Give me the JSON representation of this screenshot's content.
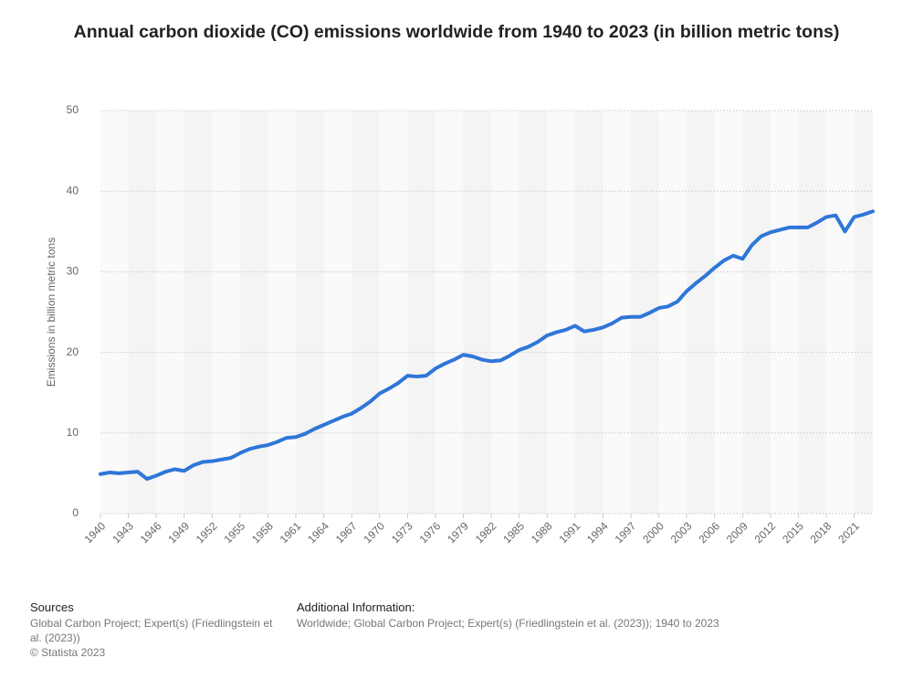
{
  "chart_data": {
    "type": "line",
    "title": "Annual carbon dioxide (CO) emissions worldwide from 1940 to 2023 (in billion metric tons)",
    "y_label": "Emissions in billion metric tons",
    "x": [
      1940,
      1941,
      1942,
      1943,
      1944,
      1945,
      1946,
      1947,
      1948,
      1949,
      1950,
      1951,
      1952,
      1953,
      1954,
      1955,
      1956,
      1957,
      1958,
      1959,
      1960,
      1961,
      1962,
      1963,
      1964,
      1965,
      1966,
      1967,
      1968,
      1969,
      1970,
      1971,
      1972,
      1973,
      1974,
      1975,
      1976,
      1977,
      1978,
      1979,
      1980,
      1981,
      1982,
      1983,
      1984,
      1985,
      1986,
      1987,
      1988,
      1989,
      1990,
      1991,
      1992,
      1993,
      1994,
      1995,
      1996,
      1997,
      1998,
      1999,
      2000,
      2001,
      2002,
      2003,
      2004,
      2005,
      2006,
      2007,
      2008,
      2009,
      2010,
      2011,
      2012,
      2013,
      2014,
      2015,
      2016,
      2017,
      2018,
      2019,
      2020,
      2021,
      2022,
      2023
    ],
    "series": [
      {
        "name": "Emissions",
        "color": "#2f76d8",
        "values": [
          4.9,
          5.1,
          5.0,
          5.1,
          5.2,
          4.3,
          4.7,
          5.2,
          5.5,
          5.3,
          6.0,
          6.4,
          6.5,
          6.7,
          6.9,
          7.5,
          8.0,
          8.3,
          8.5,
          8.9,
          9.4,
          9.5,
          9.9,
          10.5,
          11.0,
          11.5,
          12.0,
          12.4,
          13.1,
          13.9,
          14.9,
          15.5,
          16.2,
          17.1,
          17.0,
          17.1,
          18.0,
          18.6,
          19.1,
          19.7,
          19.5,
          19.1,
          18.9,
          19.0,
          19.6,
          20.3,
          20.7,
          21.3,
          22.1,
          22.5,
          22.8,
          23.3,
          22.6,
          22.8,
          23.1,
          23.6,
          24.3,
          24.4,
          24.4,
          24.9,
          25.5,
          25.7,
          26.3,
          27.6,
          28.6,
          29.5,
          30.5,
          31.4,
          32.0,
          31.6,
          33.3,
          34.4,
          34.9,
          35.2,
          35.5,
          35.5,
          35.5,
          36.1,
          36.8,
          37.0,
          35.0,
          36.8,
          37.1,
          37.5
        ]
      }
    ],
    "xlim": [
      1940,
      2023
    ],
    "xticks": [
      1940,
      1943,
      1946,
      1949,
      1952,
      1955,
      1958,
      1961,
      1964,
      1967,
      1970,
      1973,
      1976,
      1979,
      1982,
      1985,
      1988,
      1991,
      1994,
      1997,
      2000,
      2003,
      2006,
      2009,
      2012,
      2015,
      2018,
      2021
    ],
    "ylim": [
      0,
      50
    ],
    "yticks": [
      0,
      10,
      20,
      30,
      40,
      50
    ],
    "grid": true
  },
  "footer": {
    "sources_heading": "Sources",
    "sources": [
      "Global Carbon Project; Expert(s) (Friedlingstein et al. (2023))",
      "© Statista 2023"
    ],
    "info_heading": "Additional Information:",
    "info": "Worldwide; Global Carbon Project; Expert(s) (Friedlingstein et al. (2023)); 1940 to 2023"
  }
}
